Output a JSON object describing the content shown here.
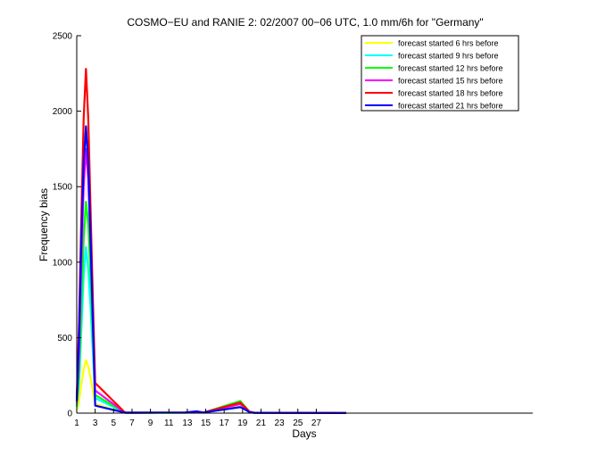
{
  "chart_data": {
    "type": "line",
    "title": "COSMO−EU and RANIE 2: 02/2007 00−06 UTC, 1.0 mm/6h for \"Germany\"",
    "xlabel": "Days",
    "ylabel": "Frequency bias",
    "xlim": [
      1,
      50.5
    ],
    "ylim": [
      0,
      2500
    ],
    "xticks": [
      1,
      3,
      5,
      7,
      9,
      11,
      13,
      15,
      17,
      19,
      21,
      23,
      25,
      27
    ],
    "yticks": [
      0,
      500,
      1000,
      1500,
      2000,
      2500
    ],
    "grid": false,
    "legend_position": "top-right",
    "series": [
      {
        "name": "forecast started 6 hrs before",
        "color": "#ffff00",
        "points": [
          [
            1,
            20
          ],
          [
            1.25,
            80
          ],
          [
            1.5,
            190
          ],
          [
            1.75,
            290
          ],
          [
            2,
            350
          ],
          [
            2.25,
            310
          ],
          [
            2.5,
            230
          ],
          [
            2.75,
            150
          ],
          [
            3,
            60
          ],
          [
            6.25,
            2
          ],
          [
            7.25,
            2
          ],
          [
            12.75,
            2
          ],
          [
            14,
            4
          ],
          [
            14.75,
            2
          ],
          [
            18.75,
            55
          ],
          [
            19.25,
            30
          ],
          [
            19.75,
            5
          ],
          [
            20.25,
            2
          ],
          [
            30.25,
            1
          ]
        ]
      },
      {
        "name": "forecast started 9 hrs before",
        "color": "#00ffff",
        "points": [
          [
            1,
            40
          ],
          [
            1.25,
            200
          ],
          [
            1.5,
            550
          ],
          [
            1.75,
            900
          ],
          [
            2,
            1100
          ],
          [
            2.25,
            950
          ],
          [
            2.5,
            700
          ],
          [
            2.75,
            400
          ],
          [
            3,
            100
          ],
          [
            6.25,
            2
          ],
          [
            7.25,
            2
          ],
          [
            12.75,
            3
          ],
          [
            14,
            6
          ],
          [
            14.75,
            3
          ],
          [
            18.75,
            65
          ],
          [
            19.25,
            35
          ],
          [
            19.75,
            8
          ],
          [
            20.25,
            2
          ],
          [
            30.25,
            1
          ]
        ]
      },
      {
        "name": "forecast started 12 hrs before",
        "color": "#00ff00",
        "points": [
          [
            1,
            50
          ],
          [
            1.25,
            250
          ],
          [
            1.5,
            700
          ],
          [
            1.75,
            1150
          ],
          [
            2,
            1400
          ],
          [
            2.25,
            1250
          ],
          [
            2.5,
            900
          ],
          [
            2.75,
            500
          ],
          [
            3,
            120
          ],
          [
            6.25,
            3
          ],
          [
            7.25,
            3
          ],
          [
            12.75,
            3
          ],
          [
            14,
            8
          ],
          [
            14.75,
            3
          ],
          [
            18.75,
            80
          ],
          [
            19.25,
            45
          ],
          [
            19.75,
            10
          ],
          [
            20.25,
            3
          ],
          [
            30.25,
            1
          ]
        ]
      },
      {
        "name": "forecast started 15 hrs before",
        "color": "#ff00ff",
        "points": [
          [
            1,
            70
          ],
          [
            1.25,
            400
          ],
          [
            1.5,
            1000
          ],
          [
            1.75,
            1500
          ],
          [
            2,
            1750
          ],
          [
            2.25,
            1550
          ],
          [
            2.5,
            1100
          ],
          [
            2.75,
            600
          ],
          [
            3,
            150
          ],
          [
            6.25,
            3
          ],
          [
            7.25,
            3
          ],
          [
            12.75,
            4
          ],
          [
            14,
            9
          ],
          [
            14.75,
            4
          ],
          [
            18.75,
            60
          ],
          [
            19.25,
            38
          ],
          [
            19.75,
            9
          ],
          [
            20.25,
            3
          ],
          [
            30.25,
            1
          ]
        ]
      },
      {
        "name": "forecast started 18 hrs before",
        "color": "#ff0000",
        "points": [
          [
            1,
            100
          ],
          [
            1.25,
            600
          ],
          [
            1.5,
            1300
          ],
          [
            1.75,
            1950
          ],
          [
            2,
            2280
          ],
          [
            2.25,
            1950
          ],
          [
            2.5,
            1350
          ],
          [
            2.75,
            750
          ],
          [
            3,
            200
          ],
          [
            6.25,
            3
          ],
          [
            7.25,
            3
          ],
          [
            12.75,
            4
          ],
          [
            14,
            10
          ],
          [
            14.75,
            4
          ],
          [
            18.75,
            70
          ],
          [
            19.25,
            40
          ],
          [
            19.75,
            9
          ],
          [
            20.25,
            3
          ],
          [
            30.25,
            1
          ]
        ]
      },
      {
        "name": "forecast started 21 hrs before",
        "color": "#0000ff",
        "points": [
          [
            1,
            80
          ],
          [
            1.25,
            500
          ],
          [
            1.5,
            1150
          ],
          [
            1.75,
            1650
          ],
          [
            2,
            1900
          ],
          [
            2.25,
            1650
          ],
          [
            2.5,
            1150
          ],
          [
            2.75,
            600
          ],
          [
            3,
            50
          ],
          [
            6.25,
            3
          ],
          [
            7.25,
            3
          ],
          [
            12.75,
            4
          ],
          [
            14,
            12
          ],
          [
            14.75,
            4
          ],
          [
            18.75,
            40
          ],
          [
            19.25,
            25
          ],
          [
            19.75,
            6
          ],
          [
            20.25,
            2
          ],
          [
            30.25,
            1
          ]
        ]
      }
    ]
  }
}
